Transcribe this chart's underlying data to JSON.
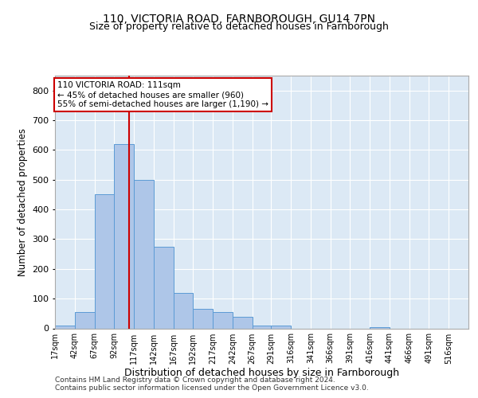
{
  "title1": "110, VICTORIA ROAD, FARNBOROUGH, GU14 7PN",
  "title2": "Size of property relative to detached houses in Farnborough",
  "xlabel": "Distribution of detached houses by size in Farnborough",
  "ylabel": "Number of detached properties",
  "footnote1": "Contains HM Land Registry data © Crown copyright and database right 2024.",
  "footnote2": "Contains public sector information licensed under the Open Government Licence v3.0.",
  "annotation_line1": "110 VICTORIA ROAD: 111sqm",
  "annotation_line2": "← 45% of detached houses are smaller (960)",
  "annotation_line3": "55% of semi-detached houses are larger (1,190) →",
  "bar_color": "#aec6e8",
  "bar_edge_color": "#5b9bd5",
  "ref_line_color": "#cc0000",
  "bg_color": "#dce9f5",
  "bin_starts": [
    17,
    42,
    67,
    92,
    117,
    142,
    167,
    192,
    217,
    242,
    267,
    291,
    316,
    341,
    366,
    391,
    416,
    441,
    466,
    491,
    516
  ],
  "bin_width": 25,
  "bar_heights": [
    10,
    55,
    450,
    620,
    500,
    275,
    120,
    65,
    55,
    40,
    10,
    10,
    0,
    0,
    0,
    0,
    5,
    0,
    0,
    0,
    0
  ],
  "ref_line_x": 111,
  "ylim": [
    0,
    850
  ],
  "yticks": [
    0,
    100,
    200,
    300,
    400,
    500,
    600,
    700,
    800
  ],
  "xlim": [
    17,
    541
  ],
  "xtick_labels": [
    "17sqm",
    "42sqm",
    "67sqm",
    "92sqm",
    "117sqm",
    "142sqm",
    "167sqm",
    "192sqm",
    "217sqm",
    "242sqm",
    "267sqm",
    "291sqm",
    "316sqm",
    "341sqm",
    "366sqm",
    "391sqm",
    "416sqm",
    "441sqm",
    "466sqm",
    "491sqm",
    "516sqm"
  ]
}
